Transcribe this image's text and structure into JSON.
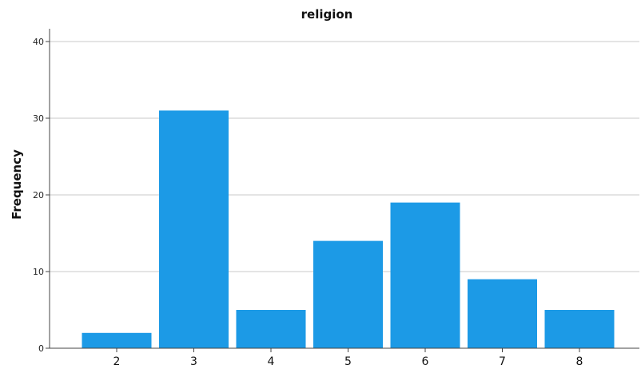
{
  "chart_data": {
    "type": "bar",
    "title": "religion",
    "xlabel": "",
    "ylabel": "Frequency",
    "categories": [
      "2",
      "3",
      "4",
      "5",
      "6",
      "7",
      "8"
    ],
    "values": [
      2,
      31,
      5,
      14,
      19,
      9,
      5
    ],
    "ylim": [
      0,
      40
    ],
    "yticks": [
      "0",
      "10",
      "20",
      "30",
      "40"
    ],
    "grid": true,
    "legend": "none",
    "bar_color": "#1c9ae6"
  }
}
